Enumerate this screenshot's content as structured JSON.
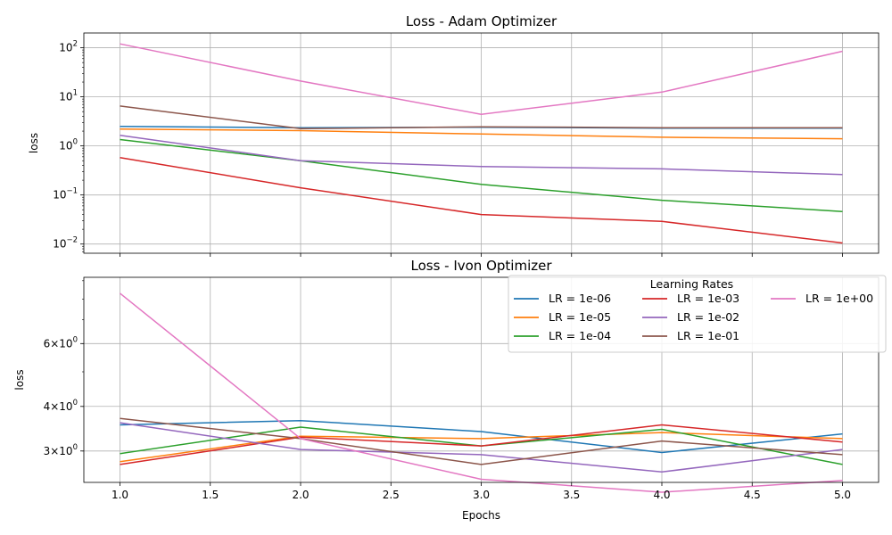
{
  "chart_data": [
    {
      "type": "line",
      "title": "Loss - Adam Optimizer",
      "xlabel": "",
      "ylabel": "loss",
      "yscale": "log",
      "ylim": [
        0.0065,
        200
      ],
      "xlim": [
        0.8,
        5.2
      ],
      "grid": true,
      "x": [
        1,
        2,
        3,
        4,
        5
      ],
      "xticks": [
        1.0,
        1.5,
        2.0,
        2.5,
        3.0,
        3.5,
        4.0,
        4.5,
        5.0
      ],
      "xtick_labels_visible": false,
      "yticks": [
        {
          "value": 0.01,
          "base": "10",
          "exp": "−2"
        },
        {
          "value": 0.1,
          "base": "10",
          "exp": "−1"
        },
        {
          "value": 1,
          "base": "10",
          "exp": "0"
        },
        {
          "value": 10,
          "base": "10",
          "exp": "1"
        },
        {
          "value": 100,
          "base": "10",
          "exp": "2"
        }
      ],
      "series": [
        {
          "name": "LR = 1e-06",
          "color": "#1f77b4",
          "values": [
            2.5,
            2.35,
            2.4,
            2.3,
            2.3
          ]
        },
        {
          "name": "LR = 1e-05",
          "color": "#ff7f0e",
          "values": [
            2.2,
            2.05,
            1.75,
            1.5,
            1.4
          ]
        },
        {
          "name": "LR = 1e-04",
          "color": "#2ca02c",
          "values": [
            1.35,
            0.5,
            0.165,
            0.078,
            0.046
          ]
        },
        {
          "name": "LR = 1e-03",
          "color": "#d62728",
          "values": [
            0.58,
            0.14,
            0.04,
            0.029,
            0.0105
          ]
        },
        {
          "name": "LR = 1e-02",
          "color": "#9467bd",
          "values": [
            1.65,
            0.5,
            0.38,
            0.34,
            0.26
          ]
        },
        {
          "name": "LR = 1e-01",
          "color": "#8c564b",
          "values": [
            6.5,
            2.25,
            2.45,
            2.35,
            2.35
          ]
        },
        {
          "name": "LR = 1e+00",
          "color": "#e377c2",
          "values": [
            120,
            21,
            4.4,
            12.5,
            85
          ]
        }
      ]
    },
    {
      "type": "line",
      "title": "Loss - Ivon Optimizer",
      "xlabel": "Epochs",
      "ylabel": "loss",
      "yscale": "log",
      "ylim": [
        2.45,
        9.2
      ],
      "xlim": [
        0.8,
        5.2
      ],
      "grid": true,
      "x": [
        1,
        2,
        3,
        4,
        5
      ],
      "xticks": [
        1.0,
        1.5,
        2.0,
        2.5,
        3.0,
        3.5,
        4.0,
        4.5,
        5.0
      ],
      "xtick_labels": [
        "1.0",
        "1.5",
        "2.0",
        "2.5",
        "3.0",
        "3.5",
        "4.0",
        "4.5",
        "5.0"
      ],
      "yticks": [
        {
          "value": 3,
          "mant": "3",
          "base": "10",
          "exp": "0"
        },
        {
          "value": 4,
          "mant": "4",
          "base": "10",
          "exp": "0"
        },
        {
          "value": 6,
          "mant": "6",
          "base": "10",
          "exp": "0"
        }
      ],
      "legend": {
        "title": "Learning Rates",
        "placement": "top-right",
        "columns": 3
      },
      "series": [
        {
          "name": "LR = 1e-06",
          "color": "#1f77b4",
          "values": [
            3.55,
            3.65,
            3.4,
            2.97,
            3.35
          ]
        },
        {
          "name": "LR = 1e-05",
          "color": "#ff7f0e",
          "values": [
            2.8,
            3.3,
            3.25,
            3.38,
            3.25
          ]
        },
        {
          "name": "LR = 1e-04",
          "color": "#2ca02c",
          "values": [
            2.95,
            3.5,
            3.1,
            3.45,
            2.75
          ]
        },
        {
          "name": "LR = 1e-03",
          "color": "#d62728",
          "values": [
            2.75,
            3.28,
            3.1,
            3.55,
            3.18
          ]
        },
        {
          "name": "LR = 1e-02",
          "color": "#9467bd",
          "values": [
            3.6,
            3.03,
            2.93,
            2.62,
            3.03
          ]
        },
        {
          "name": "LR = 1e-01",
          "color": "#8c564b",
          "values": [
            3.7,
            3.25,
            2.75,
            3.2,
            2.93
          ]
        },
        {
          "name": "LR = 1e+00",
          "color": "#e377c2",
          "values": [
            8.3,
            3.25,
            2.5,
            2.3,
            2.48
          ]
        }
      ]
    }
  ]
}
